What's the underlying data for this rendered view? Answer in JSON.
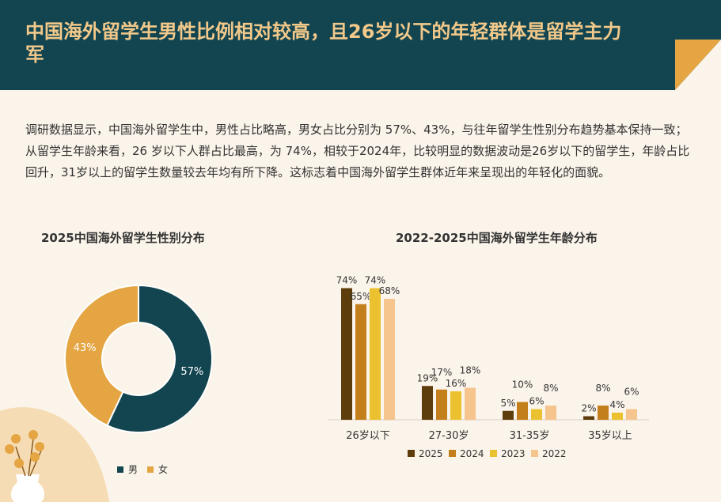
{
  "header": {
    "title": "中国海外留学生男性比例相对较高，且26岁以下的年轻群体是留学主力军"
  },
  "description": "调研数据显示，中国海外留学生中，男性占比略高，男女占比分别为 57%、43%，与往年留学生性别分布趋势基本保持一致；从留学生年龄来看，26 岁以下人群占比最高，为 74%，相较于2024年，比较明显的数据波动是26岁以下的留学生，年龄占比回升，31岁以上的留学生数量较去年均有所下降。这标志着中国海外留学生群体近年来呈现出的年轻化的面貌。",
  "colors": {
    "header_bg": "#134550",
    "title": "#f2c98a",
    "male": "#134550",
    "female": "#e4a542",
    "y2025": "#5e3d0c",
    "y2024": "#c47f1d",
    "y2023": "#ecc12f",
    "y2022": "#f6c58e"
  },
  "chart_data": [
    {
      "type": "pie",
      "title": "2025中国海外留学生性别分布",
      "donut": true,
      "slices": [
        {
          "label": "男",
          "value": 57,
          "display": "57%"
        },
        {
          "label": "女",
          "value": 43,
          "display": "43%"
        }
      ],
      "legend": [
        "男",
        "女"
      ]
    },
    {
      "type": "bar",
      "title": "2022-2025中国海外留学生年龄分布",
      "categories": [
        "26岁以下",
        "27-30岁",
        "31-35岁",
        "35岁以上"
      ],
      "series": [
        {
          "name": "2025",
          "values": [
            74,
            19,
            5,
            2
          ],
          "labels": [
            "74%",
            "19%",
            "5%",
            "2%"
          ]
        },
        {
          "name": "2024",
          "values": [
            65,
            17,
            10,
            8
          ],
          "labels": [
            "65%",
            "17%",
            "10%",
            "8%"
          ]
        },
        {
          "name": "2023",
          "values": [
            74,
            16,
            6,
            4
          ],
          "labels": [
            "74%",
            "16%",
            "6%",
            "4%"
          ]
        },
        {
          "name": "2022",
          "values": [
            68,
            18,
            8,
            6
          ],
          "labels": [
            "68%",
            "18%",
            "8%",
            "6%"
          ]
        }
      ],
      "ylim": [
        0,
        80
      ]
    }
  ]
}
